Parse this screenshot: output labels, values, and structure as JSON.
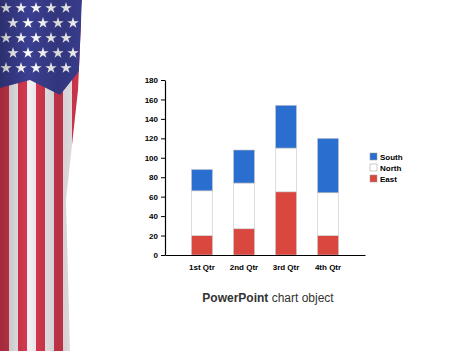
{
  "chart_data": {
    "type": "bar",
    "stacked": true,
    "legend": "right",
    "annotations": [
      "PowerPoint chart object"
    ],
    "categories": [
      "1st Qtr",
      "2nd Qtr",
      "3rd Qtr",
      "4th Qtr"
    ],
    "series": [
      {
        "name": "East",
        "color": "#d9473f",
        "values": [
          20,
          27,
          65,
          20
        ]
      },
      {
        "name": "North",
        "color": "#ffffff",
        "values": [
          46,
          47,
          45,
          44
        ]
      },
      {
        "name": "South",
        "color": "#2a6fd0",
        "values": [
          22,
          34,
          44,
          56
        ]
      }
    ],
    "ylim": [
      0,
      180
    ],
    "yticks": [
      0,
      20,
      40,
      60,
      80,
      100,
      120,
      140,
      160,
      180
    ],
    "grid": false
  }
}
